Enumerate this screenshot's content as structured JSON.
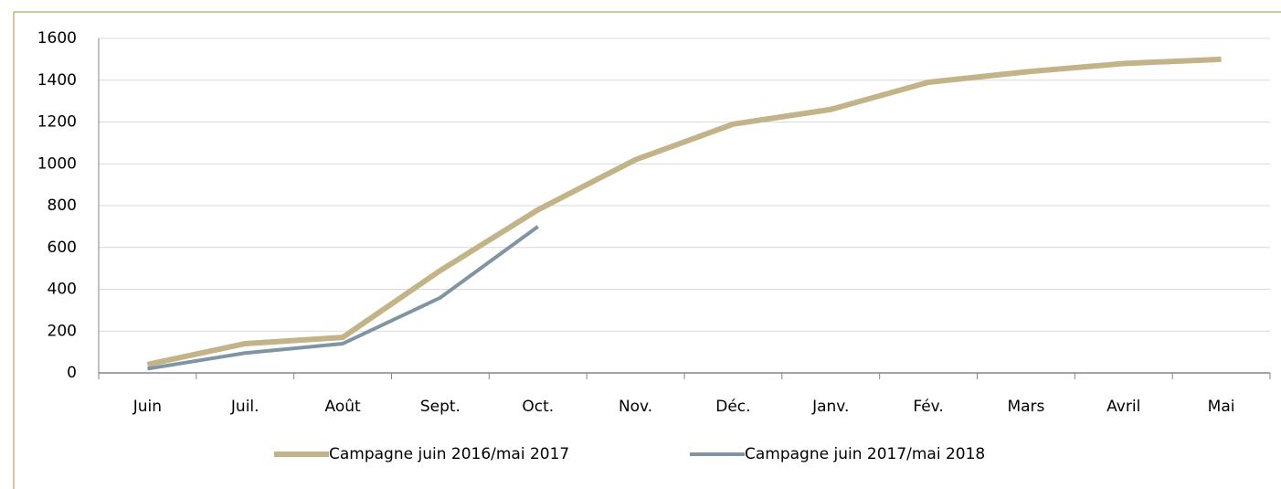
{
  "chart_data": {
    "type": "line",
    "categories": [
      "Juin",
      "Juil.",
      "Août",
      "Sept.",
      "Oct.",
      "Nov.",
      "Déc.",
      "Janv.",
      "Fév.",
      "Mars",
      "Avril",
      "Mai"
    ],
    "series": [
      {
        "name": "Campagne juin 2016/mai 2017",
        "color": "#c2b388",
        "values": [
          40,
          140,
          170,
          490,
          780,
          1020,
          1190,
          1260,
          1390,
          1440,
          1480,
          1500
        ]
      },
      {
        "name": "Campagne juin 2017/mai 2018",
        "color": "#7f95a3",
        "values": [
          20,
          95,
          140,
          360,
          700,
          null,
          null,
          null,
          null,
          null,
          null,
          null
        ]
      }
    ],
    "ylim": [
      0,
      1600
    ],
    "yticks": [
      0,
      200,
      400,
      600,
      800,
      1000,
      1200,
      1400,
      1600
    ],
    "grid": true,
    "legend": "bottom"
  }
}
